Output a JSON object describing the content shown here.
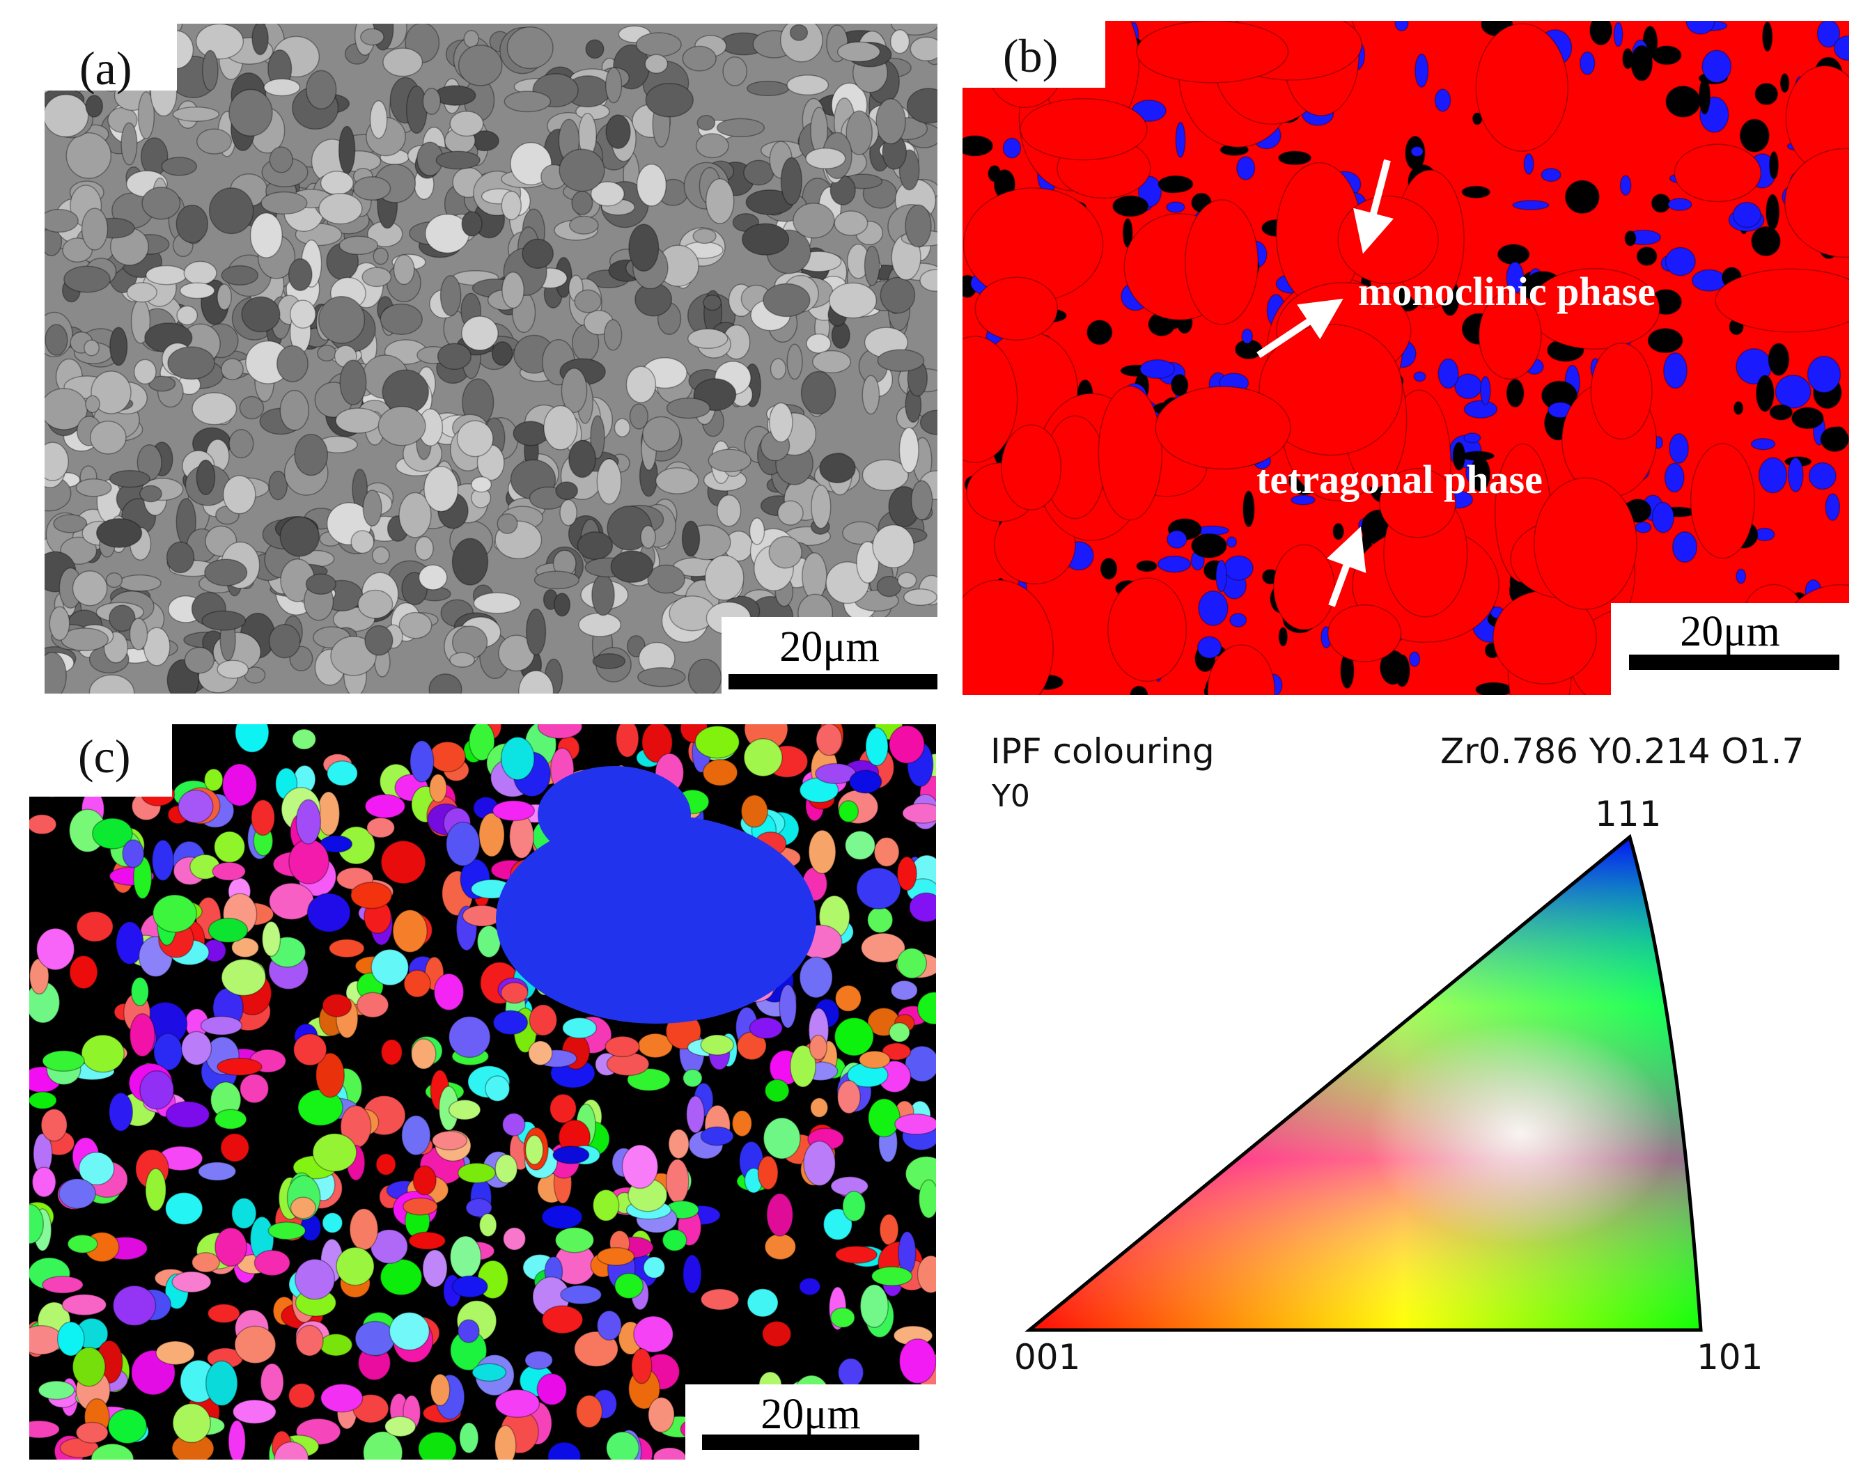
{
  "panels": {
    "a": {
      "letter": "(a)",
      "scale": "20μm"
    },
    "b": {
      "letter": "(b)",
      "scale": "20μm",
      "labels": {
        "monoclinic": "monoclinic phase",
        "tetragonal": "tetragonal phase"
      }
    },
    "c": {
      "letter": "(c)",
      "scale": "20μm"
    }
  },
  "ipf": {
    "title": "IPF colouring",
    "formula": "Zr0.786 Y0.214 O1.7",
    "direction": "Y0",
    "corners": {
      "top": "111",
      "left": "001",
      "right": "101"
    }
  },
  "colors": {
    "tetragonal": "#ff0000",
    "monoclinic": "#1a1aff",
    "unindexed": "#000000",
    "sem_gray": "#8a8a8a",
    "arrow": "#ffffff"
  }
}
